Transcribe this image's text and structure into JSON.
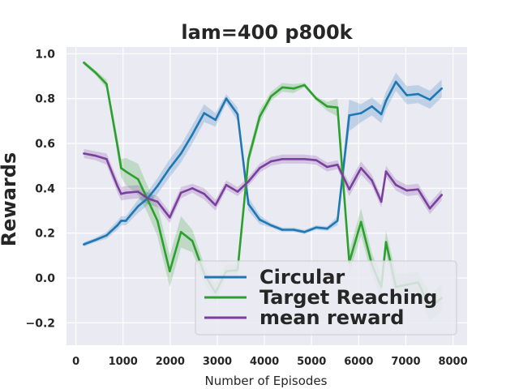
{
  "chart_data": {
    "type": "line",
    "title": "lam=400 p800k",
    "xlabel": "Number of Episodes",
    "ylabel": "Rewards",
    "xlim": [
      -200,
      8300
    ],
    "ylim": [
      -0.3,
      1.03
    ],
    "grid": true,
    "legend_position": "lower-right",
    "xticks": [
      {
        "value": 0,
        "label": "0"
      },
      {
        "value": 1000,
        "label": "1000"
      },
      {
        "value": 2000,
        "label": "2000"
      },
      {
        "value": 3000,
        "label": "3000"
      },
      {
        "value": 4000,
        "label": "4000"
      },
      {
        "value": 5000,
        "label": "5000"
      },
      {
        "value": 6000,
        "label": "6000"
      },
      {
        "value": 7000,
        "label": "7000"
      },
      {
        "value": 8000,
        "label": "8000"
      }
    ],
    "yticks": [
      {
        "value": -0.2,
        "label": "−0.2"
      },
      {
        "value": 0.0,
        "label": "0.0"
      },
      {
        "value": 0.2,
        "label": "0.2"
      },
      {
        "value": 0.4,
        "label": "0.4"
      },
      {
        "value": 0.6,
        "label": "0.6"
      },
      {
        "value": 0.8,
        "label": "0.8"
      },
      {
        "value": 1.0,
        "label": "1.0"
      }
    ],
    "x": [
      170,
      420,
      650,
      880,
      960,
      1060,
      1320,
      1520,
      1730,
      1990,
      2230,
      2470,
      2720,
      2960,
      3190,
      3430,
      3660,
      3900,
      4140,
      4380,
      4620,
      4850,
      5100,
      5330,
      5550,
      5800,
      6050,
      6280,
      6480,
      6580,
      6790,
      7020,
      7260,
      7510,
      7760
    ],
    "series": [
      {
        "name": "Circular",
        "color": "#1f77b4",
        "band_color": "#1f77b4",
        "values": [
          0.15,
          0.17,
          0.19,
          0.235,
          0.255,
          0.255,
          0.32,
          0.355,
          0.41,
          0.49,
          0.555,
          0.64,
          0.735,
          0.705,
          0.8,
          0.73,
          0.33,
          0.26,
          0.235,
          0.215,
          0.215,
          0.205,
          0.225,
          0.22,
          0.255,
          0.725,
          0.735,
          0.765,
          0.73,
          0.79,
          0.875,
          0.815,
          0.82,
          0.795,
          0.845
        ],
        "spread": [
          0.01,
          0.01,
          0.015,
          0.02,
          0.02,
          0.02,
          0.03,
          0.03,
          0.035,
          0.04,
          0.04,
          0.04,
          0.04,
          0.03,
          0.02,
          0.03,
          0.03,
          0.02,
          0.01,
          0.01,
          0.01,
          0.01,
          0.01,
          0.01,
          0.02,
          0.07,
          0.04,
          0.04,
          0.04,
          0.04,
          0.04,
          0.04,
          0.04,
          0.04,
          0.04
        ]
      },
      {
        "name": "Target Reaching",
        "color": "#2ca02c",
        "band_color": "#2ca02c",
        "values": [
          0.96,
          0.915,
          0.865,
          0.59,
          0.49,
          0.475,
          0.44,
          0.35,
          0.255,
          0.03,
          0.205,
          0.165,
          0.02,
          -0.065,
          0.03,
          0.035,
          0.53,
          0.72,
          0.81,
          0.85,
          0.845,
          0.86,
          0.8,
          0.765,
          0.76,
          0.07,
          0.25,
          0.06,
          -0.04,
          0.16,
          -0.04,
          -0.03,
          -0.02,
          -0.13,
          -0.09
        ],
        "spread": [
          0.01,
          0.01,
          0.02,
          0.04,
          0.04,
          0.06,
          0.07,
          0.06,
          0.07,
          0.07,
          0.07,
          0.05,
          0.04,
          0.04,
          0.03,
          0.03,
          0.03,
          0.03,
          0.02,
          0.02,
          0.02,
          0.01,
          0.01,
          0.02,
          0.04,
          0.05,
          0.06,
          0.05,
          0.05,
          0.05,
          0.06,
          0.05,
          0.05,
          0.06,
          0.06
        ]
      },
      {
        "name": "mean reward",
        "color": "#7b3f9e",
        "band_color": "#7b3f9e",
        "values": [
          0.555,
          0.545,
          0.53,
          0.41,
          0.375,
          0.38,
          0.385,
          0.355,
          0.34,
          0.27,
          0.38,
          0.4,
          0.375,
          0.325,
          0.415,
          0.385,
          0.43,
          0.49,
          0.52,
          0.53,
          0.53,
          0.53,
          0.525,
          0.495,
          0.505,
          0.395,
          0.49,
          0.435,
          0.34,
          0.475,
          0.415,
          0.39,
          0.395,
          0.31,
          0.37
        ],
        "spread": [
          0.02,
          0.02,
          0.025,
          0.03,
          0.03,
          0.03,
          0.03,
          0.025,
          0.025,
          0.025,
          0.025,
          0.02,
          0.025,
          0.025,
          0.02,
          0.02,
          0.02,
          0.02,
          0.02,
          0.02,
          0.02,
          0.02,
          0.02,
          0.02,
          0.02,
          0.03,
          0.03,
          0.025,
          0.025,
          0.025,
          0.025,
          0.025,
          0.025,
          0.025,
          0.025
        ]
      }
    ]
  }
}
